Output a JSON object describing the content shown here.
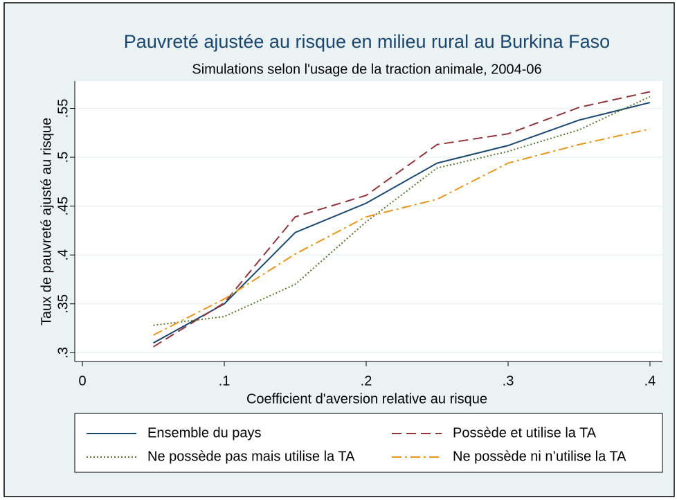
{
  "chart_data": {
    "type": "line",
    "title": "Pauvreté ajustée au risque en milieu rural au Burkina Faso",
    "subtitle": "Simulations selon l'usage de la traction animale, 2004-06",
    "x_label": "Coefficient d'aversion relative au risque",
    "y_label": "Taux de pauvreté ajusté au risque",
    "x": [
      0.05,
      0.1,
      0.15,
      0.2,
      0.25,
      0.3,
      0.35,
      0.4
    ],
    "series": [
      {
        "name": "Ensemble du pays",
        "color": "#1a476f",
        "dash": "solid",
        "values": [
          0.31,
          0.35,
          0.423,
          0.453,
          0.494,
          0.512,
          0.538,
          0.556
        ]
      },
      {
        "name": "Possède et utilise la TA",
        "color": "#90353b",
        "dash": "dashed",
        "values": [
          0.306,
          0.351,
          0.439,
          0.461,
          0.513,
          0.524,
          0.551,
          0.567
        ]
      },
      {
        "name": "Ne possède pas mais utilise la TA",
        "color": "#55752f",
        "dash": "dotted",
        "values": [
          0.328,
          0.337,
          0.37,
          0.434,
          0.489,
          0.506,
          0.528,
          0.562
        ]
      },
      {
        "name": "Ne possède ni n’utilise la TA",
        "color": "#e8951b",
        "dash": "dashdot",
        "values": [
          0.318,
          0.355,
          0.401,
          0.439,
          0.457,
          0.494,
          0.513,
          0.529
        ]
      }
    ],
    "xlim": [
      -0.0054,
      0.4088
    ],
    "ylim": [
      0.291,
      0.578
    ],
    "xticks": [
      0,
      {
        "value": 0.1,
        "label": ".1"
      },
      {
        "value": 0.2,
        "label": ".2"
      },
      {
        "value": 0.3,
        "label": ".3"
      },
      {
        "value": 0.4,
        "label": ".4"
      }
    ],
    "yticks": [
      {
        "value": 0.3,
        "label": ".3"
      },
      {
        "value": 0.35,
        "label": ".35"
      },
      {
        "value": 0.4,
        "label": ".4"
      },
      {
        "value": 0.45,
        "label": ".45"
      },
      {
        "value": 0.5,
        "label": ".5"
      },
      {
        "value": 0.55,
        "label": ".55"
      }
    ],
    "grid": true
  }
}
